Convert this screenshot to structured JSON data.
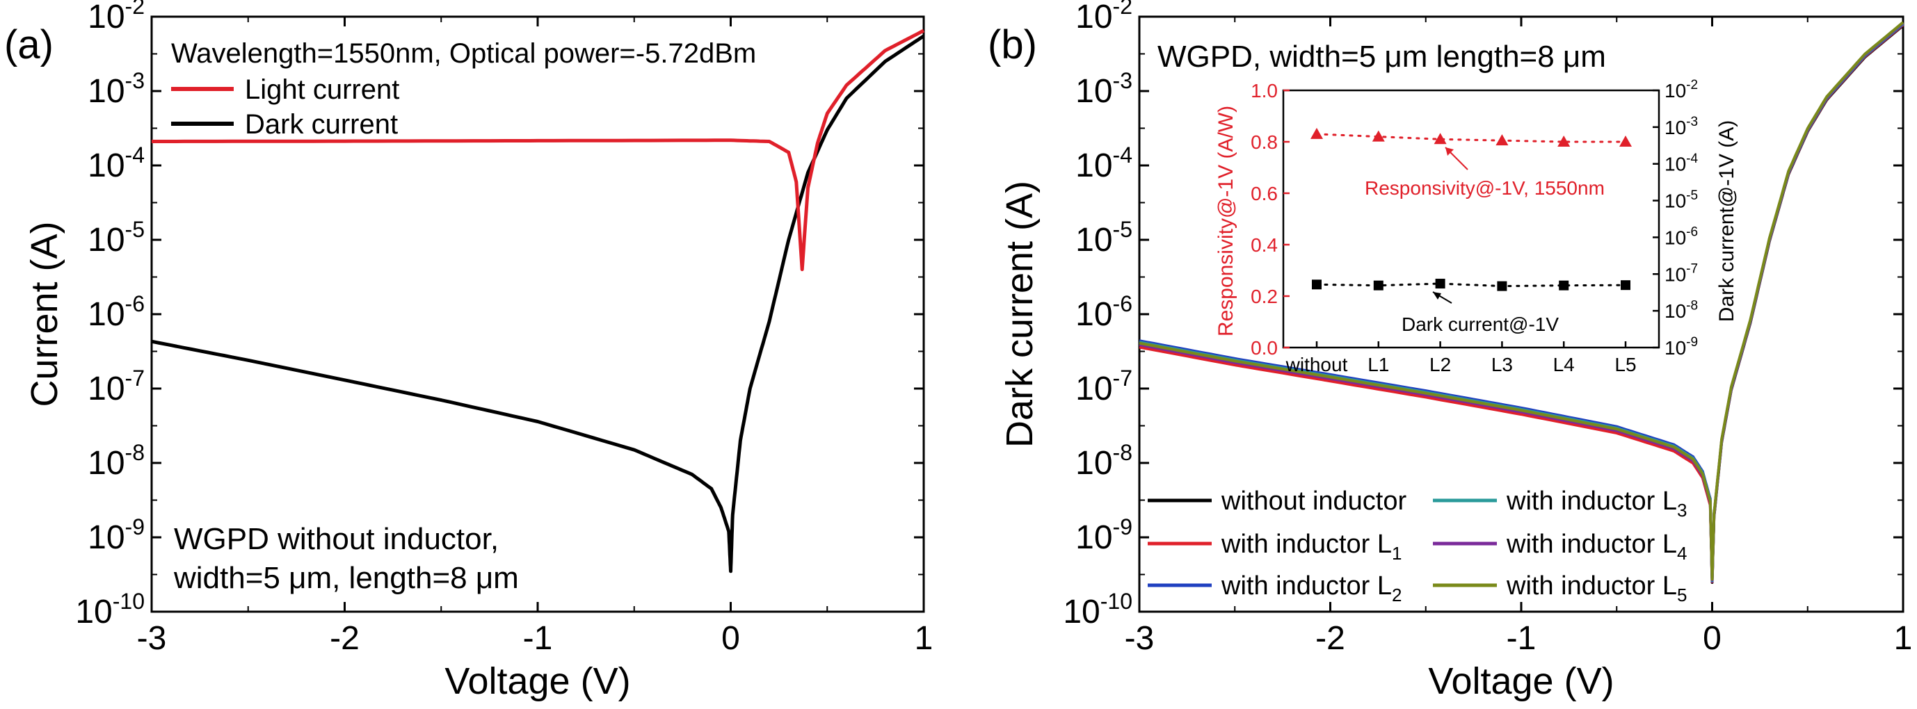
{
  "chart_data": [
    {
      "panel_label": "(a)",
      "type": "line",
      "yscale": "log",
      "xlim": [
        -3,
        1
      ],
      "ylim_exp": [
        -10,
        -2
      ],
      "xlabel": "Voltage (V)",
      "ylabel": "Current (A)",
      "x_ticks": [
        "-3",
        "-2",
        "-1",
        "0",
        "1"
      ],
      "y_tick_exponents": [
        "-10",
        "-9",
        "-8",
        "-7",
        "-6",
        "-5",
        "-4",
        "-3",
        "-2"
      ],
      "y_tick_base": "10",
      "annotation_top": "Wavelength=1550nm, Optical power=-5.72dBm",
      "annotation_bottom": [
        "WGPD without inductor,",
        "width=5 μm, length=8 μm"
      ],
      "series": [
        {
          "name": "Light current",
          "color": "#e0202a",
          "x": [
            -3,
            -2,
            -1,
            0,
            0.2,
            0.3,
            0.34,
            0.37,
            0.4,
            0.45,
            0.5,
            0.6,
            0.8,
            1.0
          ],
          "y": [
            0.00021,
            0.000212,
            0.000215,
            0.000218,
            0.00021,
            0.00015,
            6e-05,
            4e-06,
            5e-05,
            0.0002,
            0.0005,
            0.0012,
            0.0035,
            0.0065
          ]
        },
        {
          "name": "Dark current",
          "color": "#000000",
          "x": [
            -3,
            -2.5,
            -2,
            -1.5,
            -1,
            -0.5,
            -0.2,
            -0.1,
            -0.05,
            -0.01,
            0.0,
            0.01,
            0.05,
            0.1,
            0.2,
            0.3,
            0.4,
            0.5,
            0.6,
            0.8,
            1.0
          ],
          "y": [
            4.3e-07,
            2.4e-07,
            1.3e-07,
            7e-08,
            3.6e-08,
            1.5e-08,
            7e-09,
            4.5e-09,
            2.5e-09,
            1.2e-09,
            3.5e-10,
            2e-09,
            2e-08,
            1e-07,
            8e-07,
            1e-05,
            8e-05,
            0.0003,
            0.0008,
            0.0025,
            0.0055
          ]
        }
      ]
    },
    {
      "panel_label": "(b)",
      "type": "line",
      "yscale": "log",
      "xlim": [
        -3,
        1
      ],
      "ylim_exp": [
        -10,
        -2
      ],
      "xlabel": "Voltage (V)",
      "ylabel": "Dark current (A)",
      "x_ticks": [
        "-3",
        "-2",
        "-1",
        "0",
        "1"
      ],
      "y_tick_exponents": [
        "-10",
        "-9",
        "-8",
        "-7",
        "-6",
        "-5",
        "-4",
        "-3",
        "-2"
      ],
      "y_tick_base": "10",
      "annotation_top": "WGPD, width=5 μm length=8 μm",
      "legend_prefix": "with inductor ",
      "series": [
        {
          "name": "without inductor",
          "color": "#000000",
          "scale": 1.0
        },
        {
          "name": "with inductor L",
          "sub": "1",
          "color": "#e0202a",
          "scale": 0.9
        },
        {
          "name": "with inductor L",
          "sub": "2",
          "color": "#2040c0",
          "scale": 1.1
        },
        {
          "name": "with inductor L",
          "sub": "3",
          "color": "#2a9a9a",
          "scale": 1.05
        },
        {
          "name": "with inductor L",
          "sub": "4",
          "color": "#7a2a9a",
          "scale": 0.97
        },
        {
          "name": "with inductor L",
          "sub": "5",
          "color": "#7a8a1a",
          "scale": 1.02
        }
      ],
      "base_curve": {
        "x": [
          -3,
          -2.5,
          -2,
          -1.5,
          -1,
          -0.5,
          -0.2,
          -0.1,
          -0.05,
          -0.01,
          0.0,
          0.01,
          0.05,
          0.1,
          0.2,
          0.3,
          0.4,
          0.5,
          0.6,
          0.8,
          1.0
        ],
        "y": [
          4e-07,
          2.3e-07,
          1.4e-07,
          8.5e-08,
          5e-08,
          2.8e-08,
          1.6e-08,
          1.1e-08,
          7e-09,
          3e-09,
          2.6e-10,
          2e-09,
          2e-08,
          1e-07,
          8e-07,
          1e-05,
          8e-05,
          0.0003,
          0.0008,
          0.003,
          0.008
        ]
      },
      "inset": {
        "type": "scatter",
        "categories": [
          "without",
          "L1",
          "L2",
          "L3",
          "L4",
          "L5"
        ],
        "left_axis": {
          "label": "Responsivity@-1V (A/W)",
          "ylim": [
            0.0,
            1.0
          ],
          "ticks": [
            "0.0",
            "0.2",
            "0.4",
            "0.6",
            "0.8",
            "1.0"
          ],
          "color": "#e0202a"
        },
        "right_axis": {
          "label": "Dark current@-1V (A)",
          "ylim_exp": [
            -9,
            -2
          ],
          "tick_exponents": [
            "-9",
            "-8",
            "-7",
            "-6",
            "-5",
            "-4",
            "-3",
            "-2"
          ],
          "tick_base": "10"
        },
        "responsivity": {
          "name": "Responsivity@-1V, 1550nm",
          "color": "#e0202a",
          "marker": "triangle",
          "values": [
            0.83,
            0.82,
            0.81,
            0.805,
            0.8,
            0.8
          ]
        },
        "dark_current": {
          "name": "Dark current@-1V",
          "color": "#000000",
          "marker": "square",
          "values": [
            5.2e-08,
            4.9e-08,
            5.5e-08,
            4.7e-08,
            4.9e-08,
            5e-08
          ]
        }
      }
    }
  ]
}
